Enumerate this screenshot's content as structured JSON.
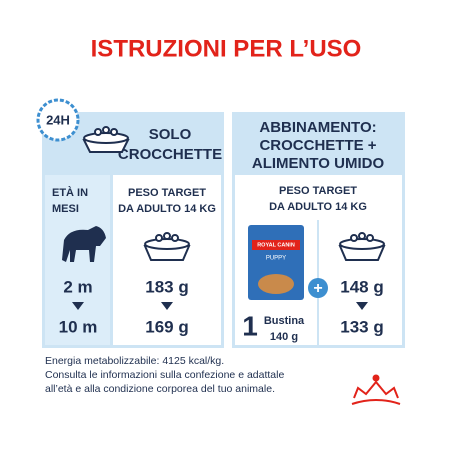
{
  "title": "ISTRUZIONI PER L’USO",
  "clock_label": "24H",
  "panels": [
    {
      "heading": [
        "SOLO",
        "CROCCHETTE"
      ],
      "columns": [
        {
          "heading": [
            "ETÀ IN",
            "MESI"
          ],
          "values": [
            "2 m",
            "10 m"
          ]
        },
        {
          "heading": [
            "PESO TARGET",
            "DA ADULTO 14 KG"
          ],
          "values": [
            "183 g",
            "169 g"
          ]
        }
      ]
    },
    {
      "heading": [
        "ABBINAMENTO:",
        "CROCCHETTE +",
        "ALIMENTO UMIDO"
      ],
      "columns": [
        {
          "heading": [
            "PESO TARGET",
            "DA ADULTO 14 KG"
          ],
          "values": [
            "148 g",
            "133 g"
          ]
        }
      ],
      "pouch": {
        "count": "1",
        "unit": "Bustina",
        "weight": "140 g",
        "brand": "ROYAL CANIN",
        "variant": "PUPPY"
      },
      "plus": "+"
    }
  ],
  "footer": [
    "Energia metabolizzabile: 4125 kcal/kg.",
    "Consulta le informazioni sulla confezione e adattale",
    "all’età e alla condizione corporea del tuo animale."
  ]
}
